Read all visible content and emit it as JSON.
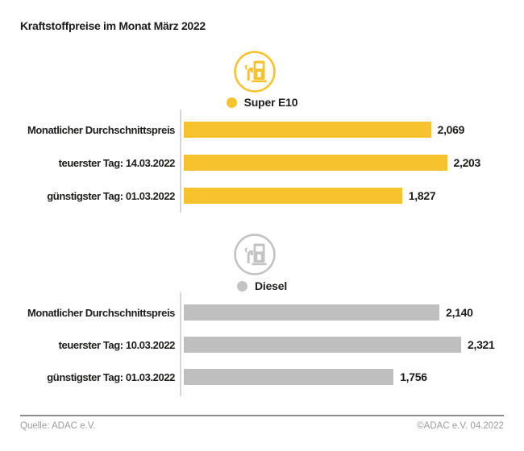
{
  "title": "Kraftstoffpreise im Monat März 2022",
  "colors": {
    "super_e10": "#F6C32E",
    "diesel_bar": "#BFBFBF",
    "diesel_icon": "#C3C3C3",
    "axis_line": "#D6D6D6",
    "text": "#1D1D1B",
    "footer_text": "#9C9C9C",
    "footer_line": "#8C8C8C"
  },
  "footer": {
    "source": "Quelle: ADAC e.V.",
    "copyright": "©ADAC e.V. 04.2022"
  },
  "chart_data": {
    "type": "bar",
    "orientation": "horizontal",
    "title": "Kraftstoffpreise im Monat März 2022",
    "value_format": "decimal-comma (Euro per litre)",
    "xlim": [
      0,
      2.4
    ],
    "grid": false,
    "legend_position": "above-each-group",
    "groups": [
      {
        "name": "Super E10",
        "color": "#F6C32E",
        "categories": [
          "Monatlicher Durchschnittspreis",
          "teuerster Tag: 14.03.2022",
          "günstigster Tag: 01.03.2022"
        ],
        "values": [
          2.069,
          2.203,
          1.827
        ],
        "value_labels": [
          "2,069",
          "2,203",
          "1,827"
        ]
      },
      {
        "name": "Diesel",
        "color": "#BFBFBF",
        "categories": [
          "Monatlicher Durchschnittspreis",
          "teuerster Tag: 10.03.2022",
          "günstigster Tag: 01.03.2022"
        ],
        "values": [
          2.14,
          2.321,
          1.756
        ],
        "value_labels": [
          "2,140",
          "2,321",
          "1,756"
        ]
      }
    ]
  }
}
